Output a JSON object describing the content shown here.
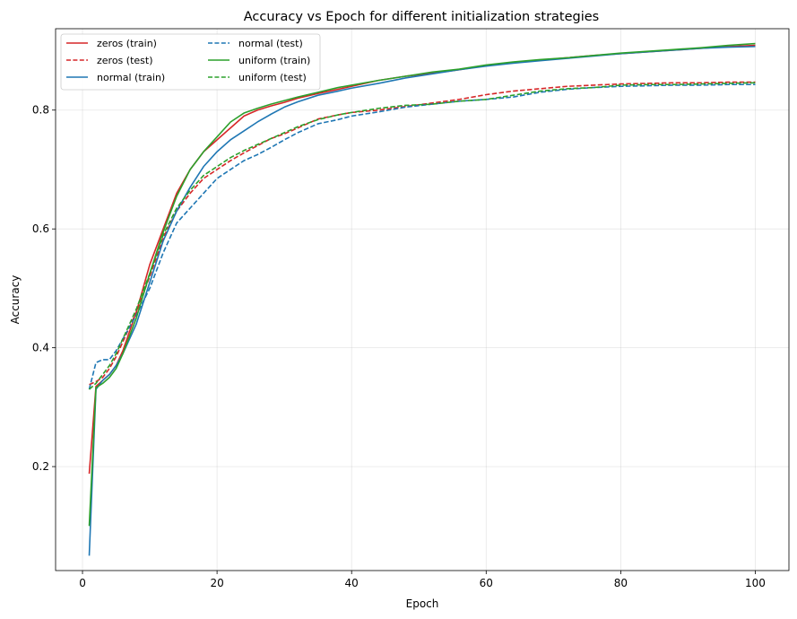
{
  "chart_data": {
    "type": "line",
    "title": "Accuracy vs Epoch for different initialization strategies",
    "xlabel": "Epoch",
    "ylabel": "Accuracy",
    "xlim": [
      -4,
      105
    ],
    "ylim": [
      0.025,
      0.937
    ],
    "xticks": [
      0,
      20,
      40,
      60,
      80,
      100
    ],
    "yticks": [
      0.2,
      0.4,
      0.6,
      0.8
    ],
    "ytick_labels": [
      "0.2",
      "0.4",
      "0.6",
      "0.8"
    ],
    "grid": true,
    "legend_position": "top-left",
    "legend_columns": 2,
    "series": [
      {
        "name": "zeros (train)",
        "color": "#d62728",
        "dash": "solid",
        "x": [
          1,
          2,
          3,
          4,
          5,
          6,
          8,
          10,
          12,
          14,
          16,
          18,
          20,
          22,
          24,
          26,
          28,
          30,
          32,
          35,
          38,
          40,
          44,
          48,
          52,
          56,
          60,
          64,
          68,
          72,
          76,
          80,
          84,
          88,
          92,
          96,
          100
        ],
        "y": [
          0.188,
          0.335,
          0.345,
          0.355,
          0.37,
          0.395,
          0.46,
          0.54,
          0.6,
          0.66,
          0.7,
          0.73,
          0.75,
          0.77,
          0.79,
          0.8,
          0.807,
          0.813,
          0.82,
          0.828,
          0.835,
          0.84,
          0.85,
          0.857,
          0.862,
          0.868,
          0.875,
          0.88,
          0.884,
          0.888,
          0.892,
          0.895,
          0.898,
          0.901,
          0.904,
          0.907,
          0.909
        ]
      },
      {
        "name": "zeros (test)",
        "color": "#d62728",
        "dash": "dashed",
        "x": [
          1,
          2,
          3,
          4,
          5,
          6,
          8,
          10,
          12,
          14,
          16,
          18,
          20,
          22,
          24,
          26,
          28,
          30,
          32,
          35,
          38,
          40,
          44,
          48,
          52,
          56,
          60,
          64,
          68,
          72,
          76,
          80,
          84,
          88,
          92,
          96,
          100
        ],
        "y": [
          0.338,
          0.343,
          0.35,
          0.365,
          0.385,
          0.41,
          0.46,
          0.52,
          0.585,
          0.63,
          0.66,
          0.685,
          0.7,
          0.715,
          0.728,
          0.74,
          0.752,
          0.76,
          0.77,
          0.785,
          0.792,
          0.796,
          0.8,
          0.806,
          0.812,
          0.818,
          0.826,
          0.832,
          0.836,
          0.84,
          0.842,
          0.844,
          0.845,
          0.846,
          0.846,
          0.847,
          0.847
        ]
      },
      {
        "name": "normal (train)",
        "color": "#1f77b4",
        "dash": "solid",
        "x": [
          1,
          2,
          3,
          4,
          5,
          6,
          8,
          10,
          12,
          14,
          16,
          18,
          20,
          22,
          24,
          26,
          28,
          30,
          32,
          35,
          38,
          40,
          44,
          48,
          52,
          56,
          60,
          64,
          68,
          72,
          76,
          80,
          84,
          88,
          92,
          96,
          100
        ],
        "y": [
          0.05,
          0.33,
          0.345,
          0.355,
          0.37,
          0.39,
          0.44,
          0.51,
          0.58,
          0.63,
          0.67,
          0.705,
          0.73,
          0.75,
          0.765,
          0.78,
          0.793,
          0.805,
          0.814,
          0.825,
          0.832,
          0.837,
          0.845,
          0.854,
          0.861,
          0.868,
          0.874,
          0.879,
          0.883,
          0.887,
          0.891,
          0.895,
          0.898,
          0.901,
          0.904,
          0.906,
          0.907
        ]
      },
      {
        "name": "normal (test)",
        "color": "#1f77b4",
        "dash": "dashed",
        "x": [
          1,
          2,
          3,
          4,
          5,
          6,
          8,
          10,
          12,
          14,
          16,
          18,
          20,
          22,
          24,
          26,
          28,
          30,
          32,
          35,
          38,
          40,
          44,
          48,
          52,
          56,
          60,
          64,
          68,
          72,
          76,
          80,
          84,
          88,
          92,
          96,
          100
        ],
        "y": [
          0.33,
          0.375,
          0.38,
          0.38,
          0.395,
          0.415,
          0.455,
          0.5,
          0.56,
          0.61,
          0.635,
          0.66,
          0.685,
          0.7,
          0.715,
          0.725,
          0.737,
          0.75,
          0.762,
          0.777,
          0.784,
          0.79,
          0.797,
          0.805,
          0.81,
          0.815,
          0.818,
          0.822,
          0.83,
          0.835,
          0.838,
          0.84,
          0.841,
          0.842,
          0.842,
          0.843,
          0.843
        ]
      },
      {
        "name": "uniform (train)",
        "color": "#2ca02c",
        "dash": "solid",
        "x": [
          1,
          2,
          3,
          4,
          5,
          6,
          8,
          10,
          12,
          14,
          16,
          18,
          20,
          22,
          24,
          26,
          28,
          30,
          32,
          35,
          38,
          40,
          44,
          48,
          52,
          56,
          60,
          64,
          68,
          72,
          76,
          80,
          84,
          88,
          92,
          96,
          100
        ],
        "y": [
          0.1,
          0.333,
          0.34,
          0.35,
          0.365,
          0.39,
          0.45,
          0.525,
          0.595,
          0.655,
          0.7,
          0.73,
          0.755,
          0.78,
          0.795,
          0.803,
          0.81,
          0.816,
          0.822,
          0.83,
          0.838,
          0.842,
          0.85,
          0.857,
          0.864,
          0.869,
          0.876,
          0.881,
          0.885,
          0.888,
          0.892,
          0.896,
          0.899,
          0.902,
          0.905,
          0.909,
          0.912
        ]
      },
      {
        "name": "uniform (test)",
        "color": "#2ca02c",
        "dash": "dashed",
        "x": [
          1,
          2,
          3,
          4,
          5,
          6,
          8,
          10,
          12,
          14,
          16,
          18,
          20,
          22,
          24,
          26,
          28,
          30,
          32,
          35,
          38,
          40,
          44,
          48,
          52,
          56,
          60,
          64,
          68,
          72,
          76,
          80,
          84,
          88,
          92,
          96,
          100
        ],
        "y": [
          0.33,
          0.34,
          0.355,
          0.37,
          0.39,
          0.415,
          0.465,
          0.525,
          0.59,
          0.635,
          0.665,
          0.69,
          0.705,
          0.72,
          0.732,
          0.742,
          0.752,
          0.762,
          0.772,
          0.784,
          0.792,
          0.796,
          0.803,
          0.808,
          0.81,
          0.815,
          0.818,
          0.825,
          0.832,
          0.836,
          0.838,
          0.842,
          0.843,
          0.843,
          0.844,
          0.845,
          0.846
        ]
      }
    ]
  }
}
